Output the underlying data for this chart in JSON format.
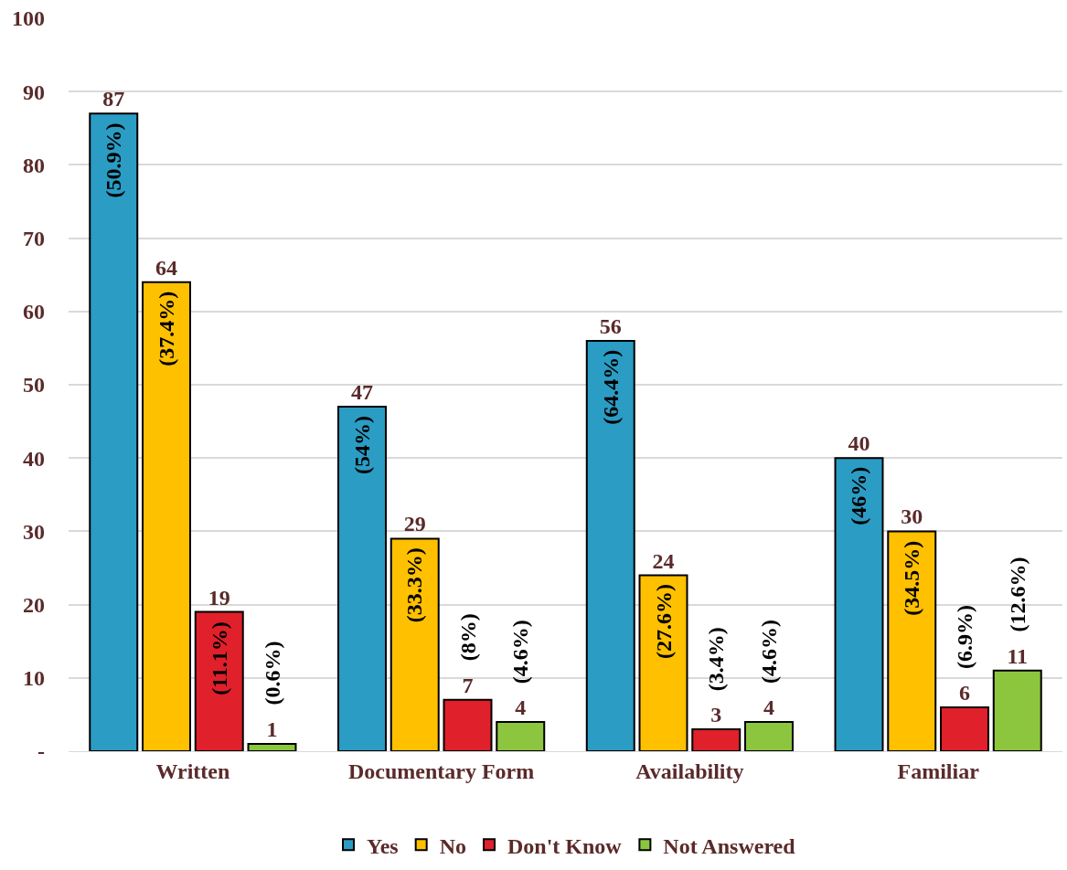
{
  "chart_data": {
    "type": "bar",
    "categories": [
      "Written",
      "Documentary Form",
      "Availability",
      "Familiar"
    ],
    "series": [
      {
        "name": "Yes",
        "color": "#2b9cc4",
        "values": [
          87,
          47,
          56,
          40
        ]
      },
      {
        "name": "No",
        "color": "#ffc000",
        "values": [
          64,
          29,
          24,
          30
        ]
      },
      {
        "name": "Don't Know",
        "color": "#e0202a",
        "values": [
          19,
          7,
          3,
          6
        ]
      },
      {
        "name": "Not Answered",
        "color": "#8cc63f",
        "values": [
          1,
          4,
          4,
          11
        ]
      }
    ],
    "ylim": [
      0,
      100
    ],
    "yticks": [
      {
        "value": 0,
        "label": "-"
      },
      10,
      20,
      30,
      40,
      50,
      60,
      70,
      80,
      90,
      100
    ],
    "grid": "y",
    "legend": "bottom",
    "data_labels": true,
    "annotations": [
      "(50.9%)",
      "(54%)",
      "(64.4%)",
      "(46%)",
      "(37.4%)",
      "(33.3%)",
      "(27.6%)",
      "(34.5%)",
      "(11.1%)",
      "(8%)",
      "(3.4%)",
      "(6.9%)",
      "(0.6%)",
      "(4.6%)",
      "(4.6%)",
      "(12.6%)"
    ]
  }
}
